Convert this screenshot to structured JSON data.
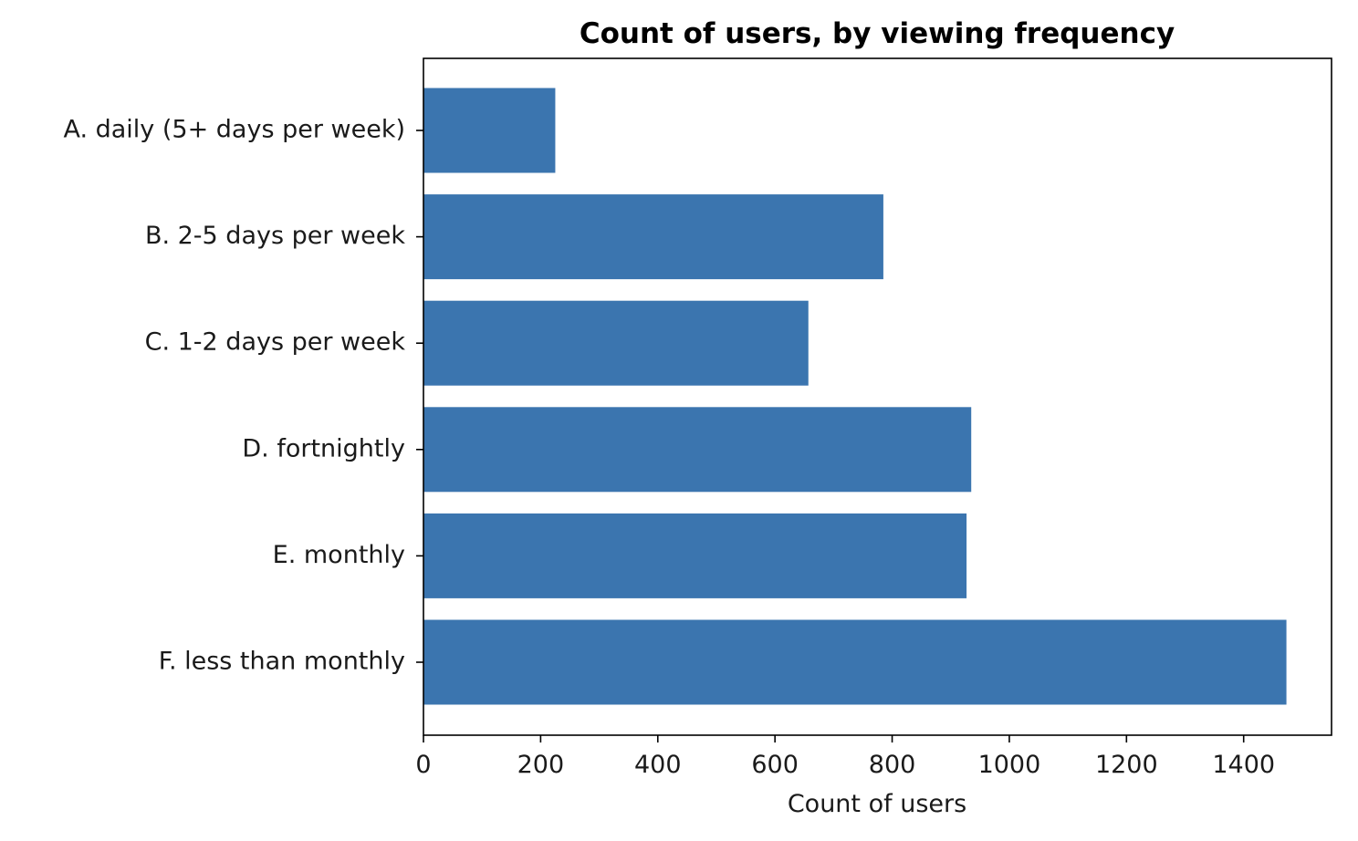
{
  "chart_data": {
    "type": "bar",
    "orientation": "horizontal",
    "title": "Count of users, by viewing frequency",
    "xlabel": "Count of users",
    "ylabel": "",
    "categories": [
      "A. daily (5+ days per week)",
      "B. 2-5 days per week",
      "C. 1-2 days per week",
      "D. fortnightly",
      "E. monthly",
      "F. less than monthly"
    ],
    "values": [
      225,
      785,
      657,
      935,
      927,
      1473
    ],
    "xlim": [
      0,
      1550
    ],
    "xticks": [
      0,
      200,
      400,
      600,
      800,
      1000,
      1200,
      1400
    ],
    "xtick_labels": [
      "0",
      "200",
      "400",
      "600",
      "800",
      "1000",
      "1200",
      "1400"
    ],
    "grid": false,
    "legend": "none",
    "bar_color": "#3b75af"
  }
}
